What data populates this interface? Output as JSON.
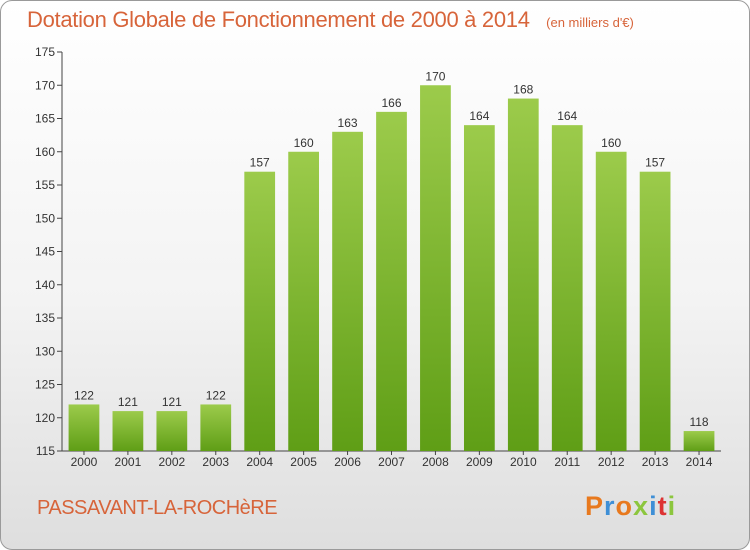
{
  "header": {
    "title": "Dotation Globale de Fonctionnement de 2000 à 2014",
    "unit": "(en milliers d'€)"
  },
  "footer": {
    "place": "PASSAVANT-LA-ROCHèRE",
    "logo": "Proxiti"
  },
  "colors": {
    "title": "#d7643a",
    "bar_top": "#9ccb4b",
    "bar_bottom": "#5f9e16",
    "logo_letters": [
      "#e8791e",
      "#3e8fd6",
      "#e8791e",
      "#8cc63e",
      "#3e8fd6",
      "#d33",
      "#8cc63e"
    ]
  },
  "chart_data": {
    "type": "bar",
    "title": "Dotation Globale de Fonctionnement de 2000 à 2014",
    "categories": [
      "2000",
      "2001",
      "2002",
      "2003",
      "2004",
      "2005",
      "2006",
      "2007",
      "2008",
      "2009",
      "2010",
      "2011",
      "2012",
      "2013",
      "2014"
    ],
    "values": [
      122,
      121,
      121,
      122,
      157,
      160,
      163,
      166,
      170,
      164,
      168,
      164,
      160,
      157,
      118
    ],
    "ylim": [
      115,
      175
    ],
    "yticks": [
      115,
      120,
      125,
      130,
      135,
      140,
      145,
      150,
      155,
      160,
      165,
      170,
      175
    ],
    "grid": false,
    "xlabel": "",
    "ylabel": ""
  }
}
